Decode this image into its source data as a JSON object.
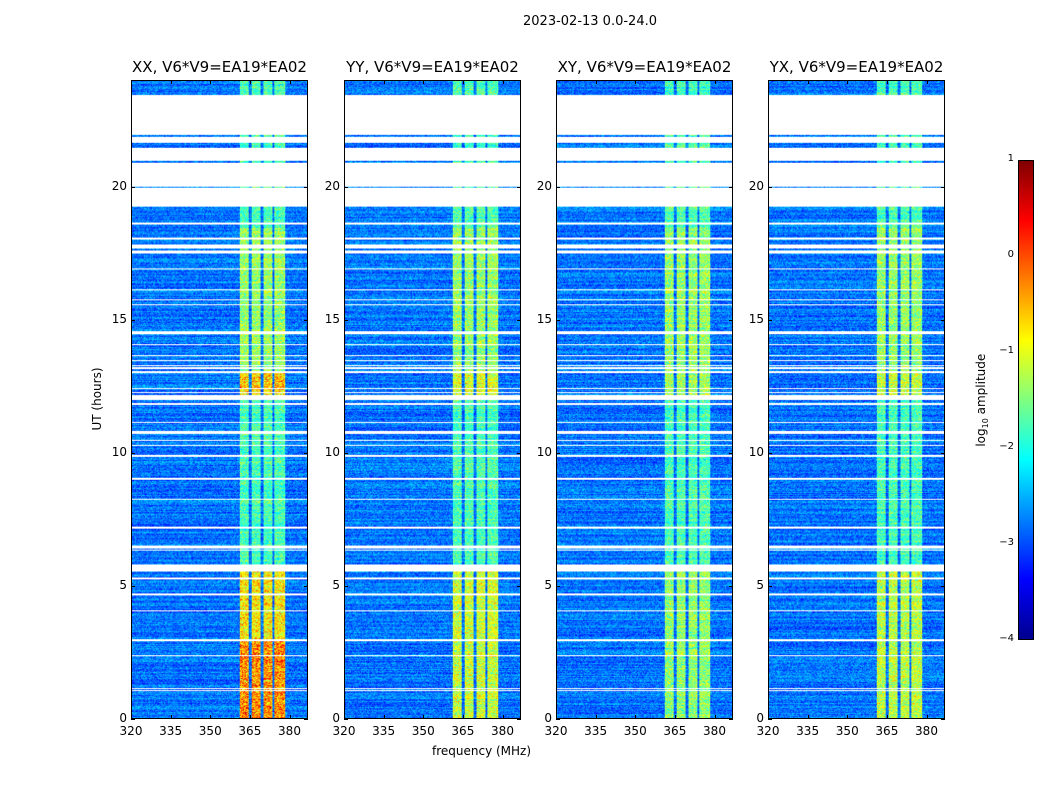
{
  "chart_data": {
    "type": "heatmap",
    "title": "2023-02-13 0.0-24.0",
    "xlabel": "frequency (MHz)",
    "ylabel": "UT (hours)",
    "xlim": [
      320,
      387
    ],
    "ylim": [
      0,
      24
    ],
    "xticks": [
      320,
      335,
      350,
      365,
      380
    ],
    "yticks": [
      0,
      5,
      10,
      15,
      20
    ],
    "panels": [
      {
        "title": "XX, V6*V9=EA19*EA02",
        "rfi_strength": 1.0
      },
      {
        "title": "YY, V6*V9=EA19*EA02",
        "rfi_strength": 0.85
      },
      {
        "title": "XY, V6*V9=EA19*EA02",
        "rfi_strength": 0.7
      },
      {
        "title": "YX, V6*V9=EA19*EA02",
        "rfi_strength": 0.8
      }
    ],
    "rfi_bands_mhz": [
      [
        361,
        364.5
      ],
      [
        365.5,
        369
      ],
      [
        370,
        373.5
      ],
      [
        374.5,
        378.5
      ]
    ],
    "flagged_hours": [
      [
        23.4,
        23.5
      ],
      [
        22.0,
        23.4
      ],
      [
        21.7,
        21.9
      ],
      [
        21.0,
        21.5
      ],
      [
        19.3,
        20.0
      ],
      [
        20.05,
        20.95
      ],
      [
        12.0,
        12.2
      ],
      [
        5.6,
        5.8
      ],
      [
        18.6,
        18.7
      ],
      [
        17.7,
        17.8
      ],
      [
        13.0,
        13.1
      ],
      [
        11.8,
        11.9
      ]
    ],
    "colorbar": {
      "label": "log10 amplitude",
      "range": [
        -4,
        1
      ],
      "ticks": [
        "1",
        "0",
        "−1",
        "−2",
        "−3",
        "−4"
      ],
      "colormap": "jet"
    }
  }
}
